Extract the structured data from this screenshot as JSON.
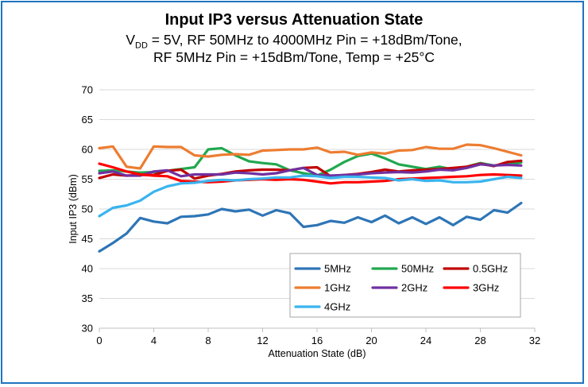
{
  "chart_data": {
    "type": "line",
    "title": "Input IP3 versus Attenuation State",
    "subtitle": {
      "line1_prefix": "V",
      "line1_sub": "DD",
      "line1_rest": " = 5V, RF 50MHz to 4000MHz Pin = +18dBm/Tone,",
      "line2": "RF 5MHz Pin = +15dBm/Tone, Temp = +25°C"
    },
    "xlabel": "Attenuation State (dB)",
    "ylabel": "Input IP3 (dBm)",
    "xlim": [
      0,
      32
    ],
    "ylim": [
      30,
      70
    ],
    "xticks": [
      0,
      4,
      8,
      12,
      16,
      20,
      24,
      28,
      32
    ],
    "yticks": [
      30,
      35,
      40,
      45,
      50,
      55,
      60,
      65,
      70
    ],
    "grid": "horizontal",
    "legend_position": "bottom-right",
    "x": [
      0,
      1,
      2,
      3,
      4,
      5,
      6,
      7,
      8,
      9,
      10,
      11,
      12,
      13,
      14,
      15,
      16,
      17,
      18,
      19,
      20,
      21,
      22,
      23,
      24,
      25,
      26,
      27,
      28,
      29,
      30,
      31
    ],
    "series": [
      {
        "name": "5MHz",
        "color": "#2e75b6",
        "values": [
          42.9,
          44.3,
          45.9,
          48.5,
          47.9,
          47.6,
          48.7,
          48.8,
          49.1,
          50.0,
          49.6,
          49.9,
          48.9,
          49.8,
          49.3,
          47.0,
          47.3,
          48.0,
          47.7,
          48.6,
          47.8,
          48.9,
          47.6,
          48.6,
          47.5,
          48.6,
          47.3,
          48.7,
          48.2,
          49.8,
          49.4,
          51.0
        ]
      },
      {
        "name": "50MHz",
        "color": "#21a84f",
        "values": [
          56.4,
          56.5,
          56.3,
          56.1,
          56.2,
          56.4,
          56.7,
          57.0,
          60.0,
          60.2,
          59.0,
          58.0,
          57.7,
          57.5,
          56.5,
          56.0,
          55.6,
          56.6,
          57.9,
          58.9,
          59.3,
          58.5,
          57.5,
          57.1,
          56.7,
          57.1,
          56.6,
          57.1,
          57.7,
          57.3,
          57.6,
          57.8
        ]
      },
      {
        "name": "0.5GHz",
        "color": "#c00000",
        "values": [
          55.2,
          55.8,
          55.6,
          55.7,
          55.7,
          56.4,
          56.6,
          55.1,
          55.6,
          55.9,
          56.3,
          56.5,
          56.6,
          56.6,
          56.5,
          56.9,
          57.0,
          55.5,
          55.7,
          55.9,
          56.2,
          56.6,
          56.3,
          56.5,
          56.6,
          56.7,
          56.9,
          57.1,
          57.6,
          57.2,
          57.9,
          58.1
        ]
      },
      {
        "name": "1GHz",
        "color": "#ed7d31",
        "values": [
          60.2,
          60.5,
          57.1,
          56.8,
          60.5,
          60.4,
          60.4,
          59.0,
          58.8,
          59.1,
          59.2,
          59.1,
          59.8,
          59.9,
          60.0,
          60.0,
          60.3,
          59.5,
          59.6,
          59.1,
          59.5,
          59.3,
          59.8,
          59.9,
          60.4,
          60.1,
          60.1,
          60.8,
          60.7,
          60.2,
          59.6,
          59.0
        ]
      },
      {
        "name": "2GHz",
        "color": "#7030a0",
        "values": [
          56.0,
          56.3,
          55.6,
          55.6,
          56.3,
          56.5,
          55.5,
          55.8,
          55.8,
          55.8,
          56.1,
          56.0,
          55.8,
          56.0,
          56.5,
          56.9,
          55.7,
          55.6,
          55.7,
          55.8,
          56.0,
          56.1,
          56.2,
          56.1,
          56.3,
          56.6,
          56.5,
          56.9,
          57.5,
          57.3,
          57.4,
          57.3
        ]
      },
      {
        "name": "3GHz",
        "color": "#ff0000",
        "values": [
          57.6,
          57.0,
          56.3,
          55.8,
          55.6,
          55.5,
          54.7,
          54.6,
          54.5,
          54.6,
          54.8,
          54.9,
          55.0,
          54.9,
          55.0,
          54.9,
          54.6,
          54.3,
          54.5,
          54.5,
          54.6,
          54.7,
          55.0,
          55.1,
          55.2,
          55.3,
          55.4,
          55.5,
          55.7,
          55.8,
          55.7,
          55.6
        ]
      },
      {
        "name": "4GHz",
        "color": "#3ab4ee",
        "values": [
          48.8,
          50.2,
          50.6,
          51.4,
          52.9,
          53.8,
          54.3,
          54.4,
          54.7,
          54.9,
          54.8,
          55.0,
          55.1,
          55.3,
          55.3,
          55.6,
          55.5,
          55.2,
          55.4,
          55.4,
          55.3,
          55.2,
          54.8,
          55.0,
          54.7,
          54.8,
          54.5,
          54.5,
          54.6,
          55.0,
          55.4,
          55.2
        ]
      }
    ]
  }
}
